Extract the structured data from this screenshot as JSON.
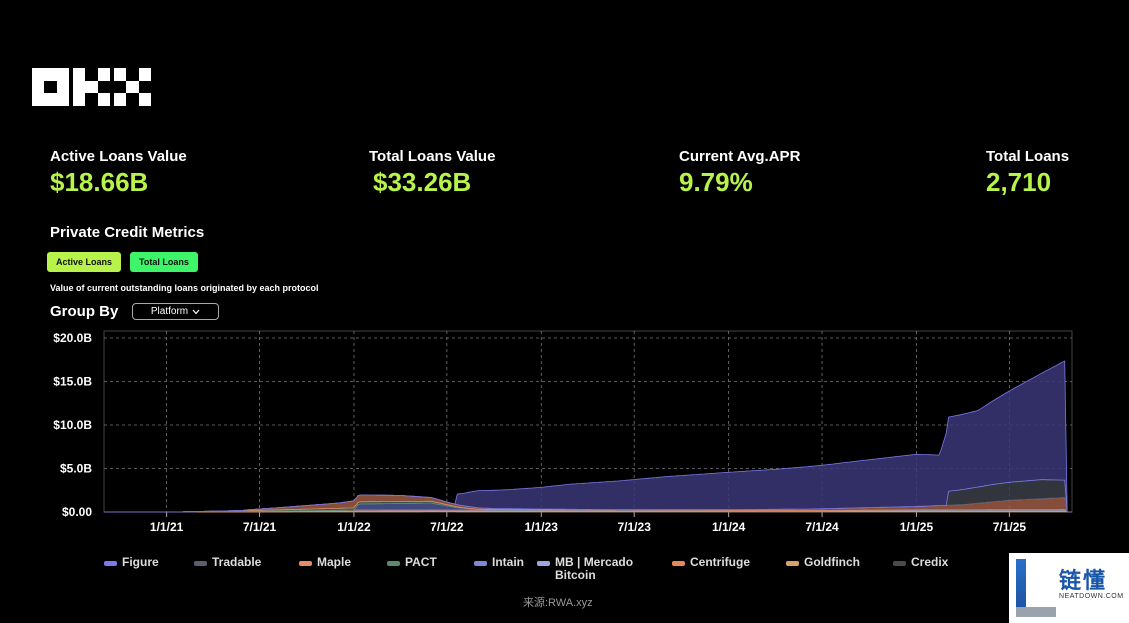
{
  "metrics": [
    {
      "label": "Active Loans Value",
      "value": "$18.66B"
    },
    {
      "label": "Total Loans Value",
      "value": "$33.26B"
    },
    {
      "label": "Current Avg.APR",
      "value": "9.79%"
    },
    {
      "label": "Total Loans",
      "value": "2,710"
    }
  ],
  "section_title": "Private Credit Metrics",
  "tabs": {
    "active": "Active Loans",
    "total": "Total Loans"
  },
  "description": "Value of current outstanding loans originated by each protocol",
  "group_by": {
    "label": "Group By",
    "selected": "Platform"
  },
  "source": "来源:RWA.xyz",
  "watermark": {
    "cn": "链懂",
    "en": "NEATDOWN.COM"
  },
  "colors": {
    "accent": "#b7f34a",
    "total_tab": "#3ef56a"
  },
  "chart_data": {
    "type": "area",
    "stacked": true,
    "x_tick_labels": [
      "1/1/21",
      "7/1/21",
      "1/1/22",
      "7/1/22",
      "1/1/23",
      "7/1/23",
      "1/1/24",
      "7/1/24",
      "1/1/25",
      "7/1/25"
    ],
    "y_tick_labels": [
      "$0.00",
      "$5.0B",
      "$10.0B",
      "$15.0B",
      "$20.0B"
    ],
    "ylim": [
      0,
      20
    ],
    "xlim": [
      "2020-09-01",
      "2025-10-31"
    ],
    "grid": true,
    "legend_position": "bottom",
    "series": [
      {
        "name": "Figure",
        "color": "#7b78e8",
        "fill": "#3a3778",
        "points": [
          [
            "2022-06-01",
            0
          ],
          [
            "2022-07-20",
            0
          ],
          [
            "2022-07-21",
            1.2
          ],
          [
            "2022-08-01",
            1.4
          ],
          [
            "2022-09-01",
            2.0
          ],
          [
            "2022-11-01",
            2.2
          ],
          [
            "2023-01-01",
            2.5
          ],
          [
            "2023-03-01",
            2.9
          ],
          [
            "2023-06-01",
            3.3
          ],
          [
            "2023-09-01",
            3.8
          ],
          [
            "2024-01-01",
            4.3
          ],
          [
            "2024-04-01",
            4.6
          ],
          [
            "2024-07-01",
            5.0
          ],
          [
            "2024-10-01",
            5.5
          ],
          [
            "2025-01-01",
            6.0
          ],
          [
            "2025-02-15",
            5.8
          ],
          [
            "2025-03-01",
            8.5
          ],
          [
            "2025-05-01",
            8.8
          ],
          [
            "2025-07-01",
            10.5
          ],
          [
            "2025-09-01",
            12.2
          ],
          [
            "2025-10-20",
            13.8
          ]
        ]
      },
      {
        "name": "Tradable",
        "color": "#5a5f70",
        "fill": "#3b3e48",
        "points": [
          [
            "2025-03-01",
            0
          ],
          [
            "2025-03-02",
            1.6
          ],
          [
            "2025-06-01",
            2.0
          ],
          [
            "2025-09-01",
            2.2
          ],
          [
            "2025-10-20",
            2.0
          ]
        ]
      },
      {
        "name": "Maple",
        "color": "#e8896a",
        "fill": "#9c5a44",
        "points": [
          [
            "2021-06-01",
            0.05
          ],
          [
            "2021-12-01",
            0.6
          ],
          [
            "2022-01-01",
            0.8
          ],
          [
            "2022-04-01",
            0.7
          ],
          [
            "2022-07-01",
            0.3
          ],
          [
            "2022-10-01",
            0.1
          ],
          [
            "2023-06-01",
            0.05
          ],
          [
            "2024-01-01",
            0.1
          ],
          [
            "2024-07-01",
            0.2
          ],
          [
            "2025-01-01",
            0.4
          ],
          [
            "2025-04-01",
            0.6
          ],
          [
            "2025-07-01",
            1.1
          ],
          [
            "2025-10-20",
            1.4
          ]
        ]
      },
      {
        "name": "PACT",
        "color": "#5d8a6c",
        "fill": "#3e6249",
        "points": [
          [
            "2021-03-01",
            0.02
          ],
          [
            "2021-09-01",
            0.15
          ],
          [
            "2022-01-01",
            0.25
          ],
          [
            "2022-06-01",
            0.2
          ],
          [
            "2022-08-01",
            0.05
          ],
          [
            "2023-01-01",
            0.02
          ],
          [
            "2025-10-20",
            0.02
          ]
        ]
      },
      {
        "name": "Intain",
        "color": "#7a8ad8",
        "fill": "#4b5795",
        "points": [
          [
            "2021-06-01",
            0
          ],
          [
            "2022-01-01",
            0
          ],
          [
            "2022-01-10",
            0.7
          ],
          [
            "2022-06-01",
            0.8
          ],
          [
            "2022-07-20",
            0.3
          ],
          [
            "2022-09-01",
            0.05
          ],
          [
            "2025-10-20",
            0
          ]
        ]
      },
      {
        "name": "MB | Mercado Bitcoin",
        "color": "#9aa8e0",
        "fill": "#6371a6",
        "points": [
          [
            "2024-06-01",
            0
          ],
          [
            "2024-09-01",
            0.05
          ],
          [
            "2025-01-01",
            0.1
          ],
          [
            "2025-10-20",
            0.15
          ]
        ]
      },
      {
        "name": "Centrifuge",
        "color": "#e8885a",
        "fill": "#b7663f",
        "points": [
          [
            "2021-02-01",
            0.02
          ],
          [
            "2021-10-01",
            0.1
          ],
          [
            "2022-01-01",
            0.15
          ],
          [
            "2022-06-01",
            0.12
          ],
          [
            "2023-01-01",
            0.1
          ],
          [
            "2024-01-01",
            0.05
          ],
          [
            "2025-10-20",
            0.05
          ]
        ]
      },
      {
        "name": "Goldfinch",
        "color": "#d9a26a",
        "fill": "#a9794a",
        "points": [
          [
            "2021-03-01",
            0.01
          ],
          [
            "2021-12-01",
            0.05
          ],
          [
            "2022-06-01",
            0.08
          ],
          [
            "2023-06-01",
            0.06
          ],
          [
            "2025-10-20",
            0.03
          ]
        ]
      },
      {
        "name": "Credix",
        "color": "#4a4a4a",
        "fill": "#2f2f2f",
        "points": [
          [
            "2021-09-01",
            0.01
          ],
          [
            "2022-06-01",
            0.03
          ],
          [
            "2023-06-01",
            0.02
          ],
          [
            "2025-10-20",
            0.01
          ]
        ]
      }
    ]
  }
}
